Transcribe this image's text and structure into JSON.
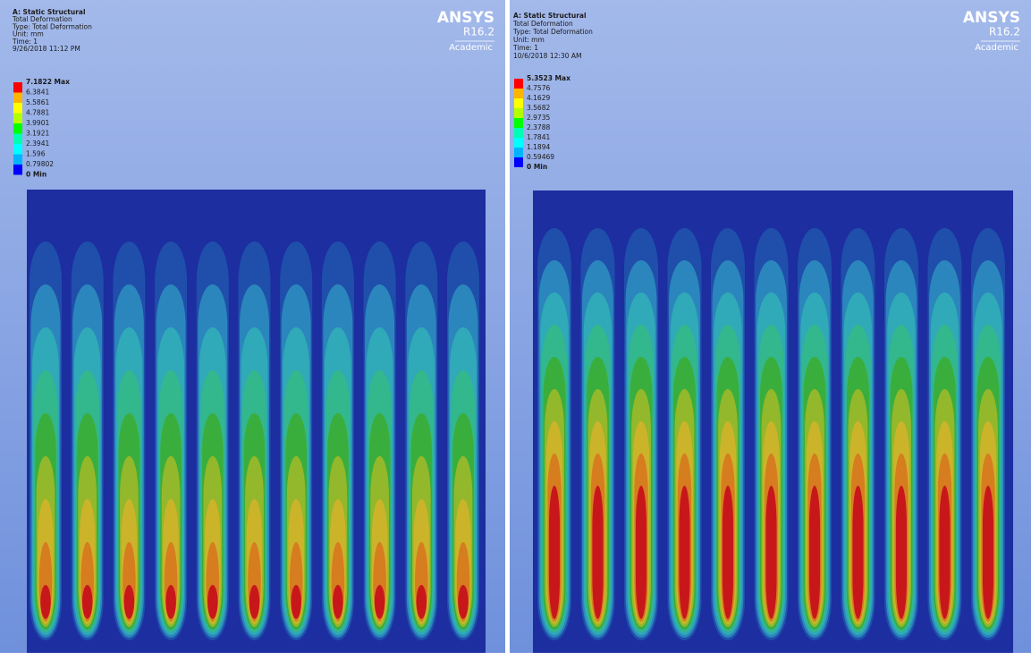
{
  "panels": [
    {
      "header": {
        "title": "A: Static Structural",
        "lines": [
          "Total Deformation",
          "Type: Total Deformation",
          "Unit: mm",
          "Time: 1",
          "9/26/2018 11:12 PM"
        ]
      },
      "legend": [
        "7.1822 Max",
        "6.3841",
        "5.5861",
        "4.7881",
        "3.9901",
        "3.1921",
        "2.3941",
        "1.596",
        "0.79802",
        "0 Min"
      ],
      "logo": {
        "brand": "ANSYS",
        "version": "R16.2",
        "edition": "Academic"
      }
    },
    {
      "header": {
        "title": "A: Static Structural",
        "lines": [
          "Total Deformation",
          "Type: Total Deformation",
          "Unit: mm",
          "Time: 1",
          "10/6/2018 12:30 AM"
        ]
      },
      "legend": [
        "5.3523 Max",
        "4.7576",
        "4.1629",
        "3.5682",
        "2.9735",
        "2.3788",
        "1.7841",
        "1.1894",
        "0.59469",
        "0 Min"
      ],
      "logo": {
        "brand": "ANSYS",
        "version": "R16.2",
        "edition": "Academic"
      }
    }
  ]
}
